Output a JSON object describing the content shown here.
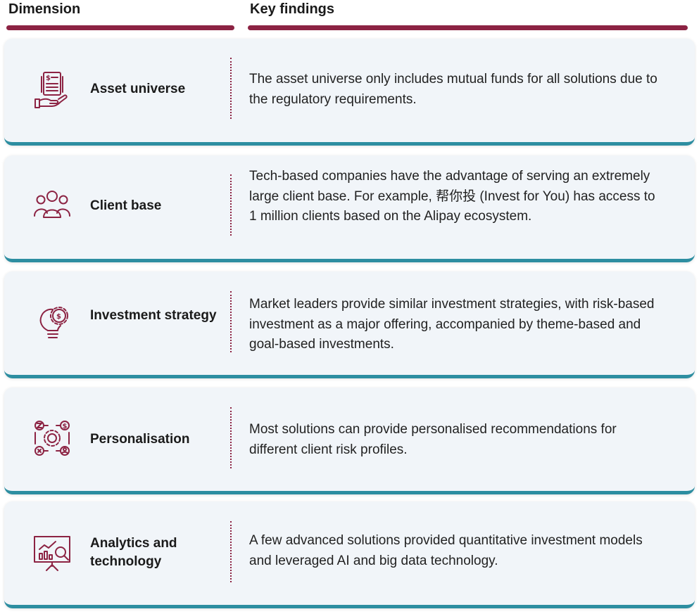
{
  "header": {
    "dimension": "Dimension",
    "key_findings": "Key findings"
  },
  "rows": [
    {
      "label": "Asset universe",
      "icon": "document-hand-icon",
      "text": "The asset universe only includes mutual funds for all solutions due to the regulatory requirements."
    },
    {
      "label": "Client base",
      "icon": "people-group-icon",
      "text": "Tech-based companies have the advantage of serving an extremely large client base. For example, 帮你投 (Invest for You) has access to 1 million clients based on the Alipay ecosystem."
    },
    {
      "label": "Investment strategy",
      "icon": "lightbulb-gear-icon",
      "text": "Market leaders provide similar investment strategies, with risk-based investment as a major offering, accompanied by theme-based and goal-based investments."
    },
    {
      "label": "Personalisation",
      "icon": "gear-network-icon",
      "text": "Most solutions can provide personalised recommendations for different client risk profiles."
    },
    {
      "label": "Analytics and technology",
      "icon": "chart-magnifier-icon",
      "text": "A few advanced solutions provided quantitative investment models and leveraged AI and big data technology."
    }
  ],
  "colors": {
    "accent": "#8c2343",
    "row_border": "#2d8ea1",
    "row_bg": "#f1f5f9"
  }
}
